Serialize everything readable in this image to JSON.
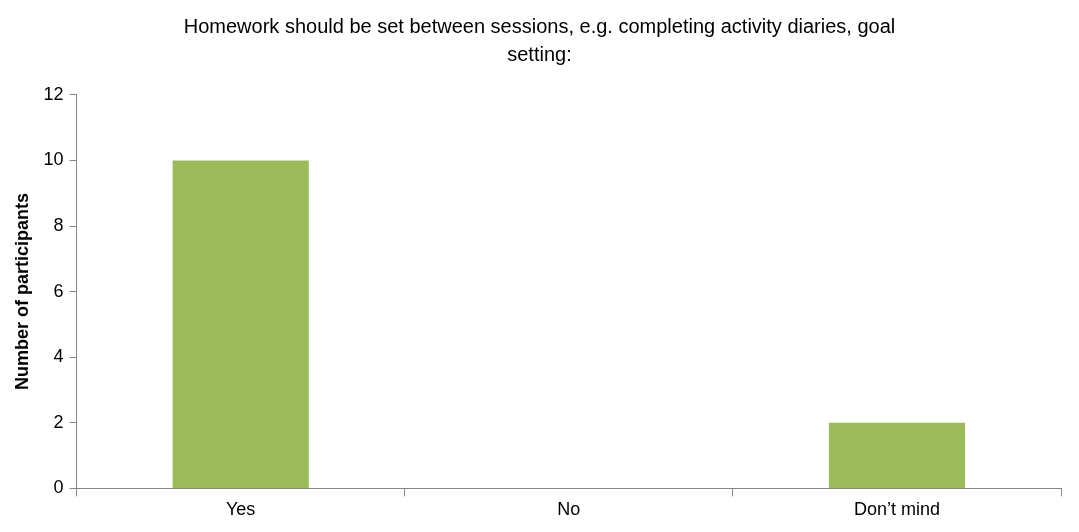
{
  "chart_data": {
    "type": "bar",
    "title": "Homework should be set between sessions, e.g. completing activity diaries, goal setting:",
    "ylabel": "Number of participants",
    "categories": [
      "Yes",
      "No",
      "Don’t mind"
    ],
    "values": [
      10,
      0,
      2
    ],
    "color": "#9bbb59",
    "ylim": [
      0,
      12
    ],
    "yticks": [
      0,
      2,
      4,
      6,
      8,
      10,
      12
    ],
    "grid": false,
    "legend": false
  }
}
